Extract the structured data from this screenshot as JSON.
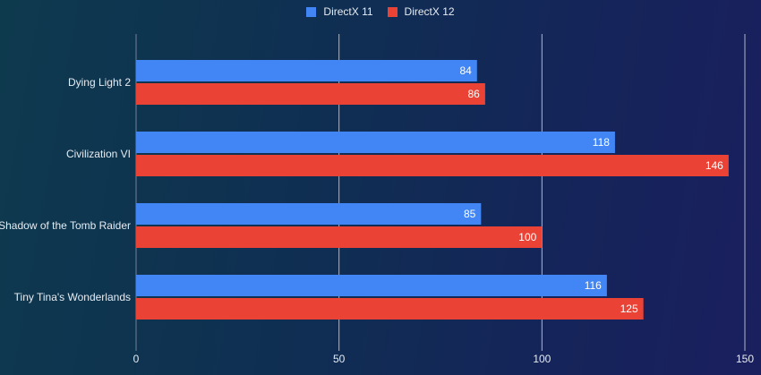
{
  "chart_data": {
    "type": "bar",
    "orientation": "horizontal",
    "title": "",
    "xlabel": "",
    "ylabel": "",
    "categories": [
      "Dying Light 2",
      "Civilization VI",
      "Shadow of the Tomb Raider",
      "Tiny Tina's Wonderlands"
    ],
    "series": [
      {
        "name": "DirectX 11",
        "color": "#4285f4",
        "values": [
          84,
          118,
          85,
          116
        ]
      },
      {
        "name": "DirectX 12",
        "color": "#ea4335",
        "values": [
          86,
          146,
          100,
          125
        ]
      }
    ],
    "xlim": [
      0,
      150
    ],
    "xticks": [
      0,
      50,
      100,
      150
    ],
    "grid": true,
    "legend_position": "top-center",
    "data_labels": true
  }
}
